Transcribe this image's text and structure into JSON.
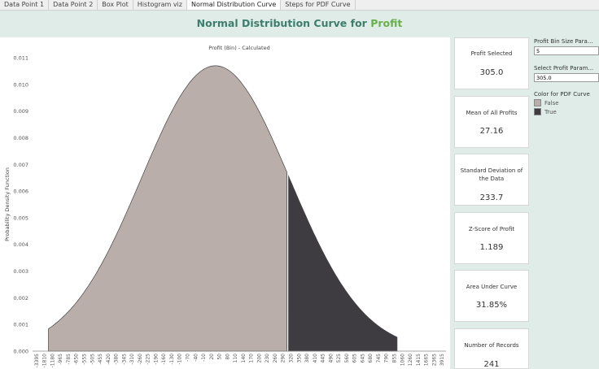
{
  "tabs": [
    "Data Point 1",
    "Data Point 2",
    "Box Plot",
    "Histogram viz",
    "Normal Distribution Curve",
    "Steps for PDF Curve"
  ],
  "active_tab": 4,
  "title": {
    "prefix": "Normal Distribution Curve for ",
    "accent": "Profit"
  },
  "colors": {
    "title": "#3d7d6e",
    "accent": "#68b04a",
    "false_area": "#b9aeaa",
    "true_area": "#3f3c41"
  },
  "cards": [
    {
      "label": "Profit Selected",
      "value": "305.0"
    },
    {
      "label": "Mean of All Profits",
      "value": "27.16"
    },
    {
      "label": "Standard Deviation of the Data",
      "value": "233.7"
    },
    {
      "label": "Z-Score of Profit",
      "value": "1.189"
    },
    {
      "label": "Area Under Curve",
      "value": "31.85%"
    },
    {
      "label": "Number of Records",
      "value": "241"
    }
  ],
  "params": {
    "bin_size_title": "Profit Bin Size Para...",
    "bin_size_value": "5",
    "select_profit_title": "Select Profit Param...",
    "select_profit_value": "305.0",
    "color_title": "Color for PDF Curve",
    "legend": [
      {
        "label": "False",
        "color": "#b9aeaa"
      },
      {
        "label": "True",
        "color": "#3f3c41"
      }
    ]
  },
  "chart_data": {
    "type": "area",
    "title": "Profit (Bin) - Calculated",
    "xlabel": "",
    "ylabel": "Probability Density Function",
    "ylim": [
      0,
      0.011
    ],
    "yticks": [
      "0.000",
      "0.001",
      "0.002",
      "0.003",
      "0.004",
      "0.005",
      "0.006",
      "0.007",
      "0.008",
      "0.009",
      "0.010",
      "0.011"
    ],
    "xticks": [
      "-3395",
      "-1810",
      "-1180",
      "-965",
      "-785",
      "-650",
      "-555",
      "-505",
      "-455",
      "-420",
      "-380",
      "-345",
      "-310",
      "-260",
      "-225",
      "-190",
      "-160",
      "-130",
      "-100",
      "-70",
      "-40",
      "-10",
      "20",
      "50",
      "80",
      "110",
      "140",
      "170",
      "200",
      "230",
      "260",
      "290",
      "320",
      "350",
      "380",
      "410",
      "445",
      "490",
      "525",
      "560",
      "605",
      "645",
      "680",
      "745",
      "790",
      "855",
      "1060",
      "1260",
      "1415",
      "1665",
      "2365",
      "3915"
    ],
    "mean": 27.16,
    "sd": 233.7,
    "selected": 305.0,
    "peak": 0.0107,
    "series": [
      {
        "name": "False",
        "color": "#b9aeaa"
      },
      {
        "name": "True",
        "color": "#3f3c41"
      }
    ],
    "grid": false,
    "legend": "right"
  }
}
